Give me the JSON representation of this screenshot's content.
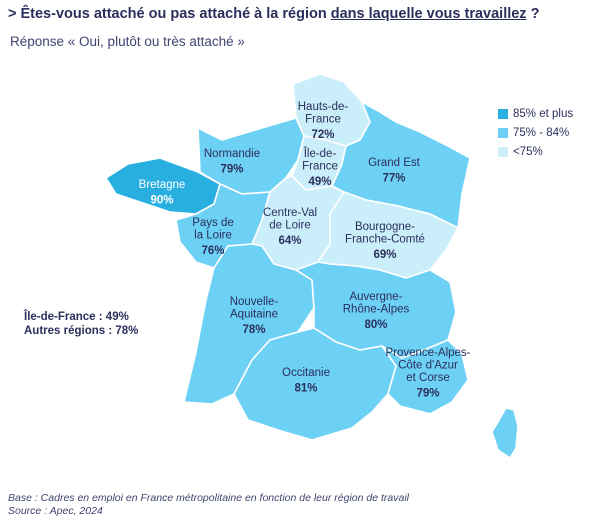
{
  "title": {
    "prefix": "> Êtes-vous attaché ou pas attaché à la région ",
    "underlined": "dans laquelle vous travaillez",
    "suffix": " ?"
  },
  "subtitle": "Réponse « Oui, plutôt ou très attaché »",
  "legend": [
    {
      "label": "85% et plus",
      "color": "#29aee0"
    },
    {
      "label": "75% - 84%",
      "color": "#6dd0f5"
    },
    {
      "label": "<75%",
      "color": "#cbeefb"
    }
  ],
  "regions": [
    {
      "name": "Hauts-de-France",
      "label_lines": [
        "Hauts-de-",
        "France"
      ],
      "value": "72%"
    },
    {
      "name": "Normandie",
      "label_lines": [
        "Normandie"
      ],
      "value": "79%"
    },
    {
      "name": "Île-de-France",
      "label_lines": [
        "Île-de-",
        "France"
      ],
      "value": "49%"
    },
    {
      "name": "Grand Est",
      "label_lines": [
        "Grand Est"
      ],
      "value": "77%"
    },
    {
      "name": "Bretagne",
      "label_lines": [
        "Bretagne"
      ],
      "value": "90%"
    },
    {
      "name": "Pays de la Loire",
      "label_lines": [
        "Pays de",
        "la Loire"
      ],
      "value": "76%"
    },
    {
      "name": "Centre-Val de Loire",
      "label_lines": [
        "Centre-Val",
        "de Loire"
      ],
      "value": "64%"
    },
    {
      "name": "Bourgogne-Franche-Comté",
      "label_lines": [
        "Bourgogne-",
        "Franche-Comté"
      ],
      "value": "69%"
    },
    {
      "name": "Nouvelle-Aquitaine",
      "label_lines": [
        "Nouvelle-",
        "Aquitaine"
      ],
      "value": "78%"
    },
    {
      "name": "Auvergne-Rhône-Alpes",
      "label_lines": [
        "Auvergne-",
        "Rhône-Alpes"
      ],
      "value": "80%"
    },
    {
      "name": "Occitanie",
      "label_lines": [
        "Occitanie"
      ],
      "value": "81%"
    },
    {
      "name": "Provence-Alpes-Côte d'Azur et Corse",
      "label_lines": [
        "Provence-Alpes-",
        "Côte d'Azur",
        "et Corse"
      ],
      "value": "79%"
    }
  ],
  "stats": {
    "line1": "Île-de-France : 49%",
    "line2": "Autres régions : 78%"
  },
  "footer": {
    "base": "Base : Cadres en emploi en France métropolitaine  en fonction de leur région de travail",
    "source": "Source : Apec, 2024"
  }
}
